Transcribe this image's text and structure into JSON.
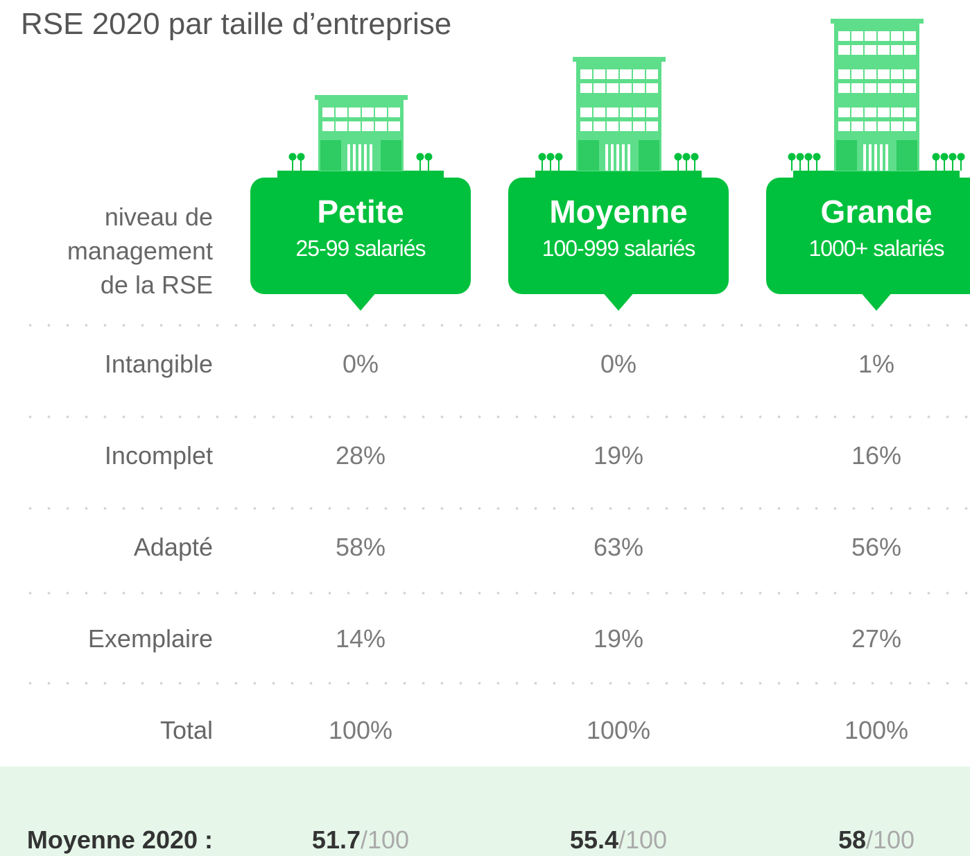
{
  "title": "RSE 2020 par taille d’entreprise",
  "header_label": [
    "niveau de",
    "management",
    "de la RSE"
  ],
  "columns": [
    {
      "name": "Petite",
      "range": "25-99 salariés"
    },
    {
      "name": "Moyenne",
      "range": "100-999 salariés"
    },
    {
      "name": "Grande",
      "range": "1000+ salariés"
    }
  ],
  "rows": [
    {
      "label": "Intangible",
      "cells": [
        "0%",
        "0%",
        "1%"
      ]
    },
    {
      "label": "Incomplet",
      "cells": [
        "28%",
        "19%",
        "16%"
      ]
    },
    {
      "label": "Adapté",
      "cells": [
        "58%",
        "63%",
        "56%"
      ]
    },
    {
      "label": "Exemplaire",
      "cells": [
        "14%",
        "19%",
        "27%"
      ]
    },
    {
      "label": "Total",
      "cells": [
        "100%",
        "100%",
        "100%"
      ]
    }
  ],
  "footer": {
    "label": "Moyenne 2020 :",
    "scores": [
      {
        "value": "51.7",
        "suffix": "/100"
      },
      {
        "value": "55.4",
        "suffix": "/100"
      },
      {
        "value": "58",
        "suffix": "/100"
      }
    ]
  }
}
